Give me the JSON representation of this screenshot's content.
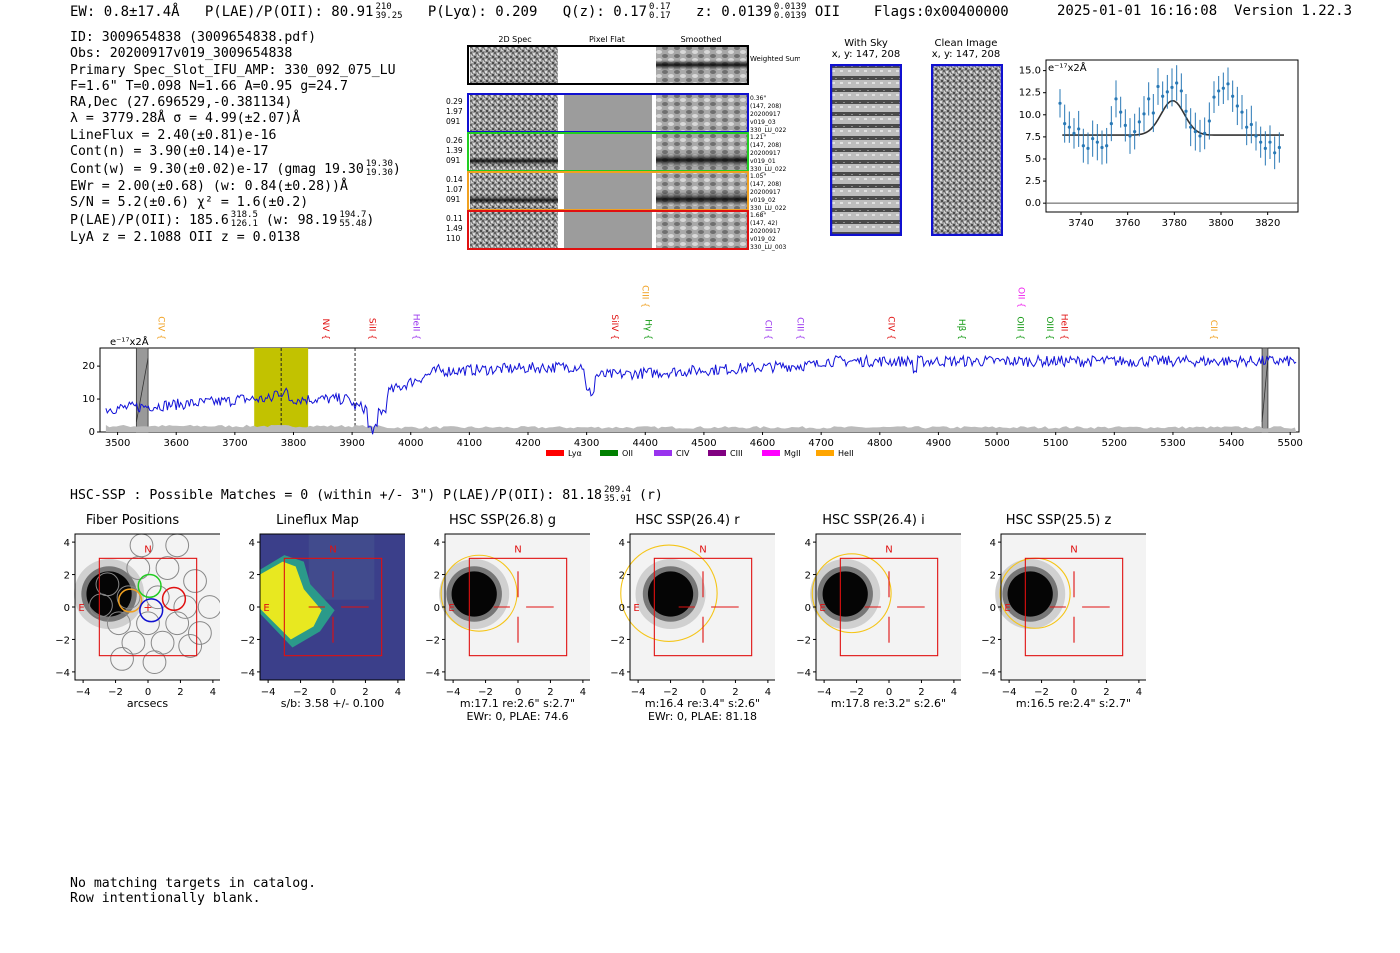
{
  "header": {
    "ew": "EW: 0.8±17.4Å",
    "plae_label": "P(LAE)/P(OII): 80.91",
    "plae_hi": "210",
    "plae_lo": "39.25",
    "plya": "P(Lyα): 0.209",
    "qz_label": "Q(z): 0.17",
    "qz_hi": "0.17",
    "qz_lo": "0.17",
    "z_label": "z: 0.0139",
    "z_hi": "0.0139",
    "z_lo": "0.0139",
    "z_line": "OII",
    "flags": "Flags:0x00400000",
    "datetime": "2025-01-01 16:16:08",
    "version": "Version 1.22.3"
  },
  "info": {
    "id": "ID: 3009654838 (3009654838.pdf)",
    "obs": "Obs: 20200917v019_3009654838",
    "primary": "Primary Spec_Slot_IFU_AMP: 330_092_075_LU",
    "fline": "F=1.6\"  T=0.098  N=1.66  A=0.95  g=24.7",
    "radec": "RA,Dec (27.696529,-0.381134)",
    "lambda": "λ = 3779.28Å  σ = 4.99(±2.07)Å",
    "lineflux": "LineFlux = 2.40(±0.81)e-16",
    "contn": "Cont(n) = 3.90(±0.14)e-17",
    "contw": "Cont(w) = 9.30(±0.02)e-17 (gmag 19.30",
    "contw_hi": "19.30",
    "contw_lo": "19.30",
    "contw_end": ")",
    "ewr": "EWr = 2.00(±0.68) (w: 0.84(±0.28))Å",
    "sn": "S/N = 5.2(±0.6)  χ² = 1.6(±0.2)",
    "plae": "P(LAE)/P(OII): 185.6",
    "plae_hi": "318.5",
    "plae_lo": "126.1",
    "plae_w": "(w: 98.19",
    "plae_w_hi": "194.7",
    "plae_w_lo": "55.48",
    "plae_w_end": ")",
    "zline": "LyA z = 2.1088   OII z = 0.0138"
  },
  "cutouts": {
    "col_2d": "2D Spec",
    "col_flat": "Pixel Flat",
    "col_smooth": "Smoothed",
    "weighted": "Weighted Sum",
    "rows": [
      {
        "l1": "0.29",
        "l2": "1.97",
        "l3": "091",
        "r1": "0.36\"",
        "r2": "(147, 208)",
        "r3": "20200917",
        "r4": "v019_03",
        "r5": "330_LU_022",
        "color": "#1010d0"
      },
      {
        "l1": "0.26",
        "l2": "1.39",
        "l3": "091",
        "r1": "1.21\"",
        "r2": "(147, 208)",
        "r3": "20200917",
        "r4": "v019_01",
        "r5": "330_LU_022",
        "color": "#22cc22"
      },
      {
        "l1": "0.14",
        "l2": "1.07",
        "l3": "091",
        "r1": "1.05\"",
        "r2": "(147, 208)",
        "r3": "20200917",
        "r4": "v019_02",
        "r5": "330_LU_022",
        "color": "#f0a020"
      },
      {
        "l1": "0.11",
        "l2": "1.49",
        "l3": "110",
        "r1": "1.68\"",
        "r2": "(147, 42)",
        "r3": "20200917",
        "r4": "v019_02",
        "r5": "330_LU_003",
        "color": "#e01010"
      }
    ]
  },
  "sky": {
    "with_sky": "With Sky",
    "with_sky_xy": "x, y: 147, 208",
    "clean": "Clean Image",
    "clean_xy": "x, y: 147, 208"
  },
  "fit": {
    "unit": "e⁻¹⁷x2Å",
    "xticks": [
      "3740",
      "3760",
      "3780",
      "3800",
      "3820"
    ],
    "yticks": [
      "0.0",
      "2.5",
      "5.0",
      "7.5",
      "10.0",
      "12.5",
      "15.0"
    ]
  },
  "spectrum": {
    "unit": "e⁻¹⁷x2Å",
    "xticks": [
      "3500",
      "3600",
      "3700",
      "3800",
      "3900",
      "4000",
      "4100",
      "4200",
      "4300",
      "4400",
      "4500",
      "4600",
      "4700",
      "4800",
      "4900",
      "5000",
      "5100",
      "5200",
      "5300",
      "5400",
      "5500"
    ],
    "yticks": [
      "0",
      "10",
      "20"
    ],
    "lines": [
      {
        "label": "CIV",
        "wave": 3570,
        "color": "#f0a020",
        "row": 1
      },
      {
        "label": "NV",
        "wave": 3850,
        "color": "#e01010",
        "row": 1
      },
      {
        "label": "SiII",
        "wave": 3930,
        "color": "#e01010",
        "row": 1
      },
      {
        "label": "HeII",
        "wave": 4005,
        "color": "#9933ee",
        "row": 1
      },
      {
        "label": "SiIV",
        "wave": 4343,
        "color": "#e01010",
        "row": 1
      },
      {
        "label": "CIII",
        "wave": 4395,
        "color": "#f0a020",
        "row": 0
      },
      {
        "label": "Hγ",
        "wave": 4400,
        "color": "#119911",
        "row": 1
      },
      {
        "label": "CII",
        "wave": 4605,
        "color": "#9933ee",
        "row": 1
      },
      {
        "label": "CIII",
        "wave": 4660,
        "color": "#9933ee",
        "row": 1
      },
      {
        "label": "CIV",
        "wave": 4815,
        "color": "#e01010",
        "row": 1
      },
      {
        "label": "Hβ",
        "wave": 4935,
        "color": "#119911",
        "row": 1
      },
      {
        "label": "OII",
        "wave": 5037,
        "color": "#ee22ee",
        "row": 0
      },
      {
        "label": "OIII",
        "wave": 5035,
        "color": "#119911",
        "row": 1
      },
      {
        "label": "OIII",
        "wave": 5085,
        "color": "#119911",
        "row": 1
      },
      {
        "label": "HeII",
        "wave": 5110,
        "color": "#e01010",
        "row": 1
      },
      {
        "label": "CII",
        "wave": 5365,
        "color": "#f0a020",
        "row": 1
      }
    ],
    "legend": [
      {
        "label": "Lyα",
        "color": "#ff0000"
      },
      {
        "label": "OII",
        "color": "#008000"
      },
      {
        "label": "CIV",
        "color": "#9933ee"
      },
      {
        "label": "CIII",
        "color": "#800080"
      },
      {
        "label": "MgII",
        "color": "#ff00ff"
      },
      {
        "label": "HeII",
        "color": "#ffa500"
      }
    ]
  },
  "hsc": {
    "summary": "HSC-SSP : Possible Matches = 0 (within +/- 3\")  P(LAE)/P(OII): 81.18",
    "summary_hi": "209.4",
    "summary_lo": "35.91",
    "summary_end": "(r)",
    "ticks": [
      "4",
      "2",
      "0",
      "−2",
      "−4"
    ],
    "xticks": [
      "−4",
      "−2",
      "0",
      "2",
      "4"
    ],
    "north": "N",
    "east": "E",
    "panels": [
      {
        "title": "Fiber Positions",
        "cap1": "arcsecs",
        "cap2": ""
      },
      {
        "title": "Lineflux Map",
        "cap1": "s/b: 3.58 +/- 0.100",
        "cap2": ""
      },
      {
        "title": "HSC SSP(26.8) g",
        "cap1": "m:17.1  re:2.6\"  s:2.7\"",
        "cap2": "EWr: 0, PLAE: 74.6"
      },
      {
        "title": "HSC SSP(26.4) r",
        "cap1": "m:16.4  re:3.4\"  s:2.6\"",
        "cap2": "EWr: 0, PLAE: 81.18"
      },
      {
        "title": "HSC SSP(26.4) i",
        "cap1": "m:17.8  re:3.2\"  s:2.6\"",
        "cap2": ""
      },
      {
        "title": "HSC SSP(25.5) z",
        "cap1": "m:16.5  re:2.4\"  s:2.7\"",
        "cap2": ""
      }
    ]
  },
  "footer": {
    "line1": "No matching targets in catalog.",
    "line2": "Row intentionally blank."
  }
}
